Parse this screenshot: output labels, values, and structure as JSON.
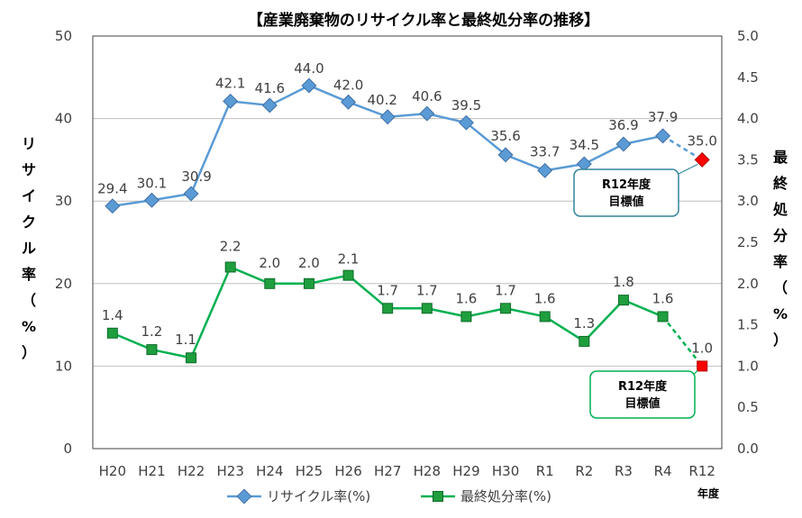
{
  "chart_data": {
    "type": "line",
    "title": "【産業廃棄物のリサイクル率と最終処分率の推移】",
    "categories": [
      "H20",
      "H21",
      "H22",
      "H23",
      "H24",
      "H25",
      "H26",
      "H27",
      "H28",
      "H29",
      "H30",
      "R1",
      "R2",
      "R3",
      "R4",
      "R12"
    ],
    "x_unit": "年度",
    "y_left": {
      "label": [
        "リ",
        "サ",
        "イ",
        "ク",
        "ル",
        "率",
        "（",
        "%",
        "）"
      ],
      "min": 0,
      "max": 50,
      "step": 10,
      "ticks": [
        "0",
        "10",
        "20",
        "30",
        "40",
        "50"
      ]
    },
    "y_right": {
      "label": [
        "最",
        "終",
        "処",
        "分",
        "率",
        "（",
        "%",
        "）"
      ],
      "min": 0,
      "max": 5,
      "step": 0.5,
      "ticks": [
        "0.0",
        "0.5",
        "1.0",
        "1.5",
        "2.0",
        "2.5",
        "3.0",
        "3.5",
        "4.0",
        "4.5",
        "5.0"
      ]
    },
    "grid": true,
    "legend_position": "bottom",
    "series": [
      {
        "name": "リサイクル率(%)",
        "axis": "left",
        "color": "#5B9BD5",
        "marker_color": "#5B9BD5",
        "marker": "diamond",
        "values": [
          29.4,
          30.1,
          30.9,
          42.1,
          41.6,
          44.0,
          42.0,
          40.2,
          40.6,
          39.5,
          35.6,
          33.7,
          34.5,
          36.9,
          37.9,
          35.0
        ],
        "labels": [
          "29.4",
          "30.1",
          "30.9",
          "42.1",
          "41.6",
          "44.0",
          "42.0",
          "40.2",
          "40.6",
          "39.5",
          "35.6",
          "33.7",
          "34.5",
          "36.9",
          "37.9",
          "35.0"
        ],
        "target_color": "#FF0000"
      },
      {
        "name": "最終処分率(%)",
        "axis": "right",
        "color": "#00B050",
        "marker_color": "#1F9E3E",
        "marker": "square",
        "values": [
          1.4,
          1.2,
          1.1,
          2.2,
          2.0,
          2.0,
          2.1,
          1.7,
          1.7,
          1.6,
          1.7,
          1.6,
          1.3,
          1.8,
          1.6,
          1.0
        ],
        "labels": [
          "1.4",
          "1.2",
          "1.1",
          "2.2",
          "2.0",
          "2.0",
          "2.1",
          "1.7",
          "1.7",
          "1.6",
          "1.7",
          "1.6",
          "1.3",
          "1.8",
          "1.6",
          "1.0"
        ],
        "target_color": "#FF0000"
      }
    ],
    "annotations": [
      {
        "lines": [
          "R12年度",
          "目標値"
        ],
        "series": 0,
        "color": "#31859C"
      },
      {
        "lines": [
          "R12年度",
          "目標値"
        ],
        "series": 1,
        "color": "#00B050"
      }
    ]
  }
}
